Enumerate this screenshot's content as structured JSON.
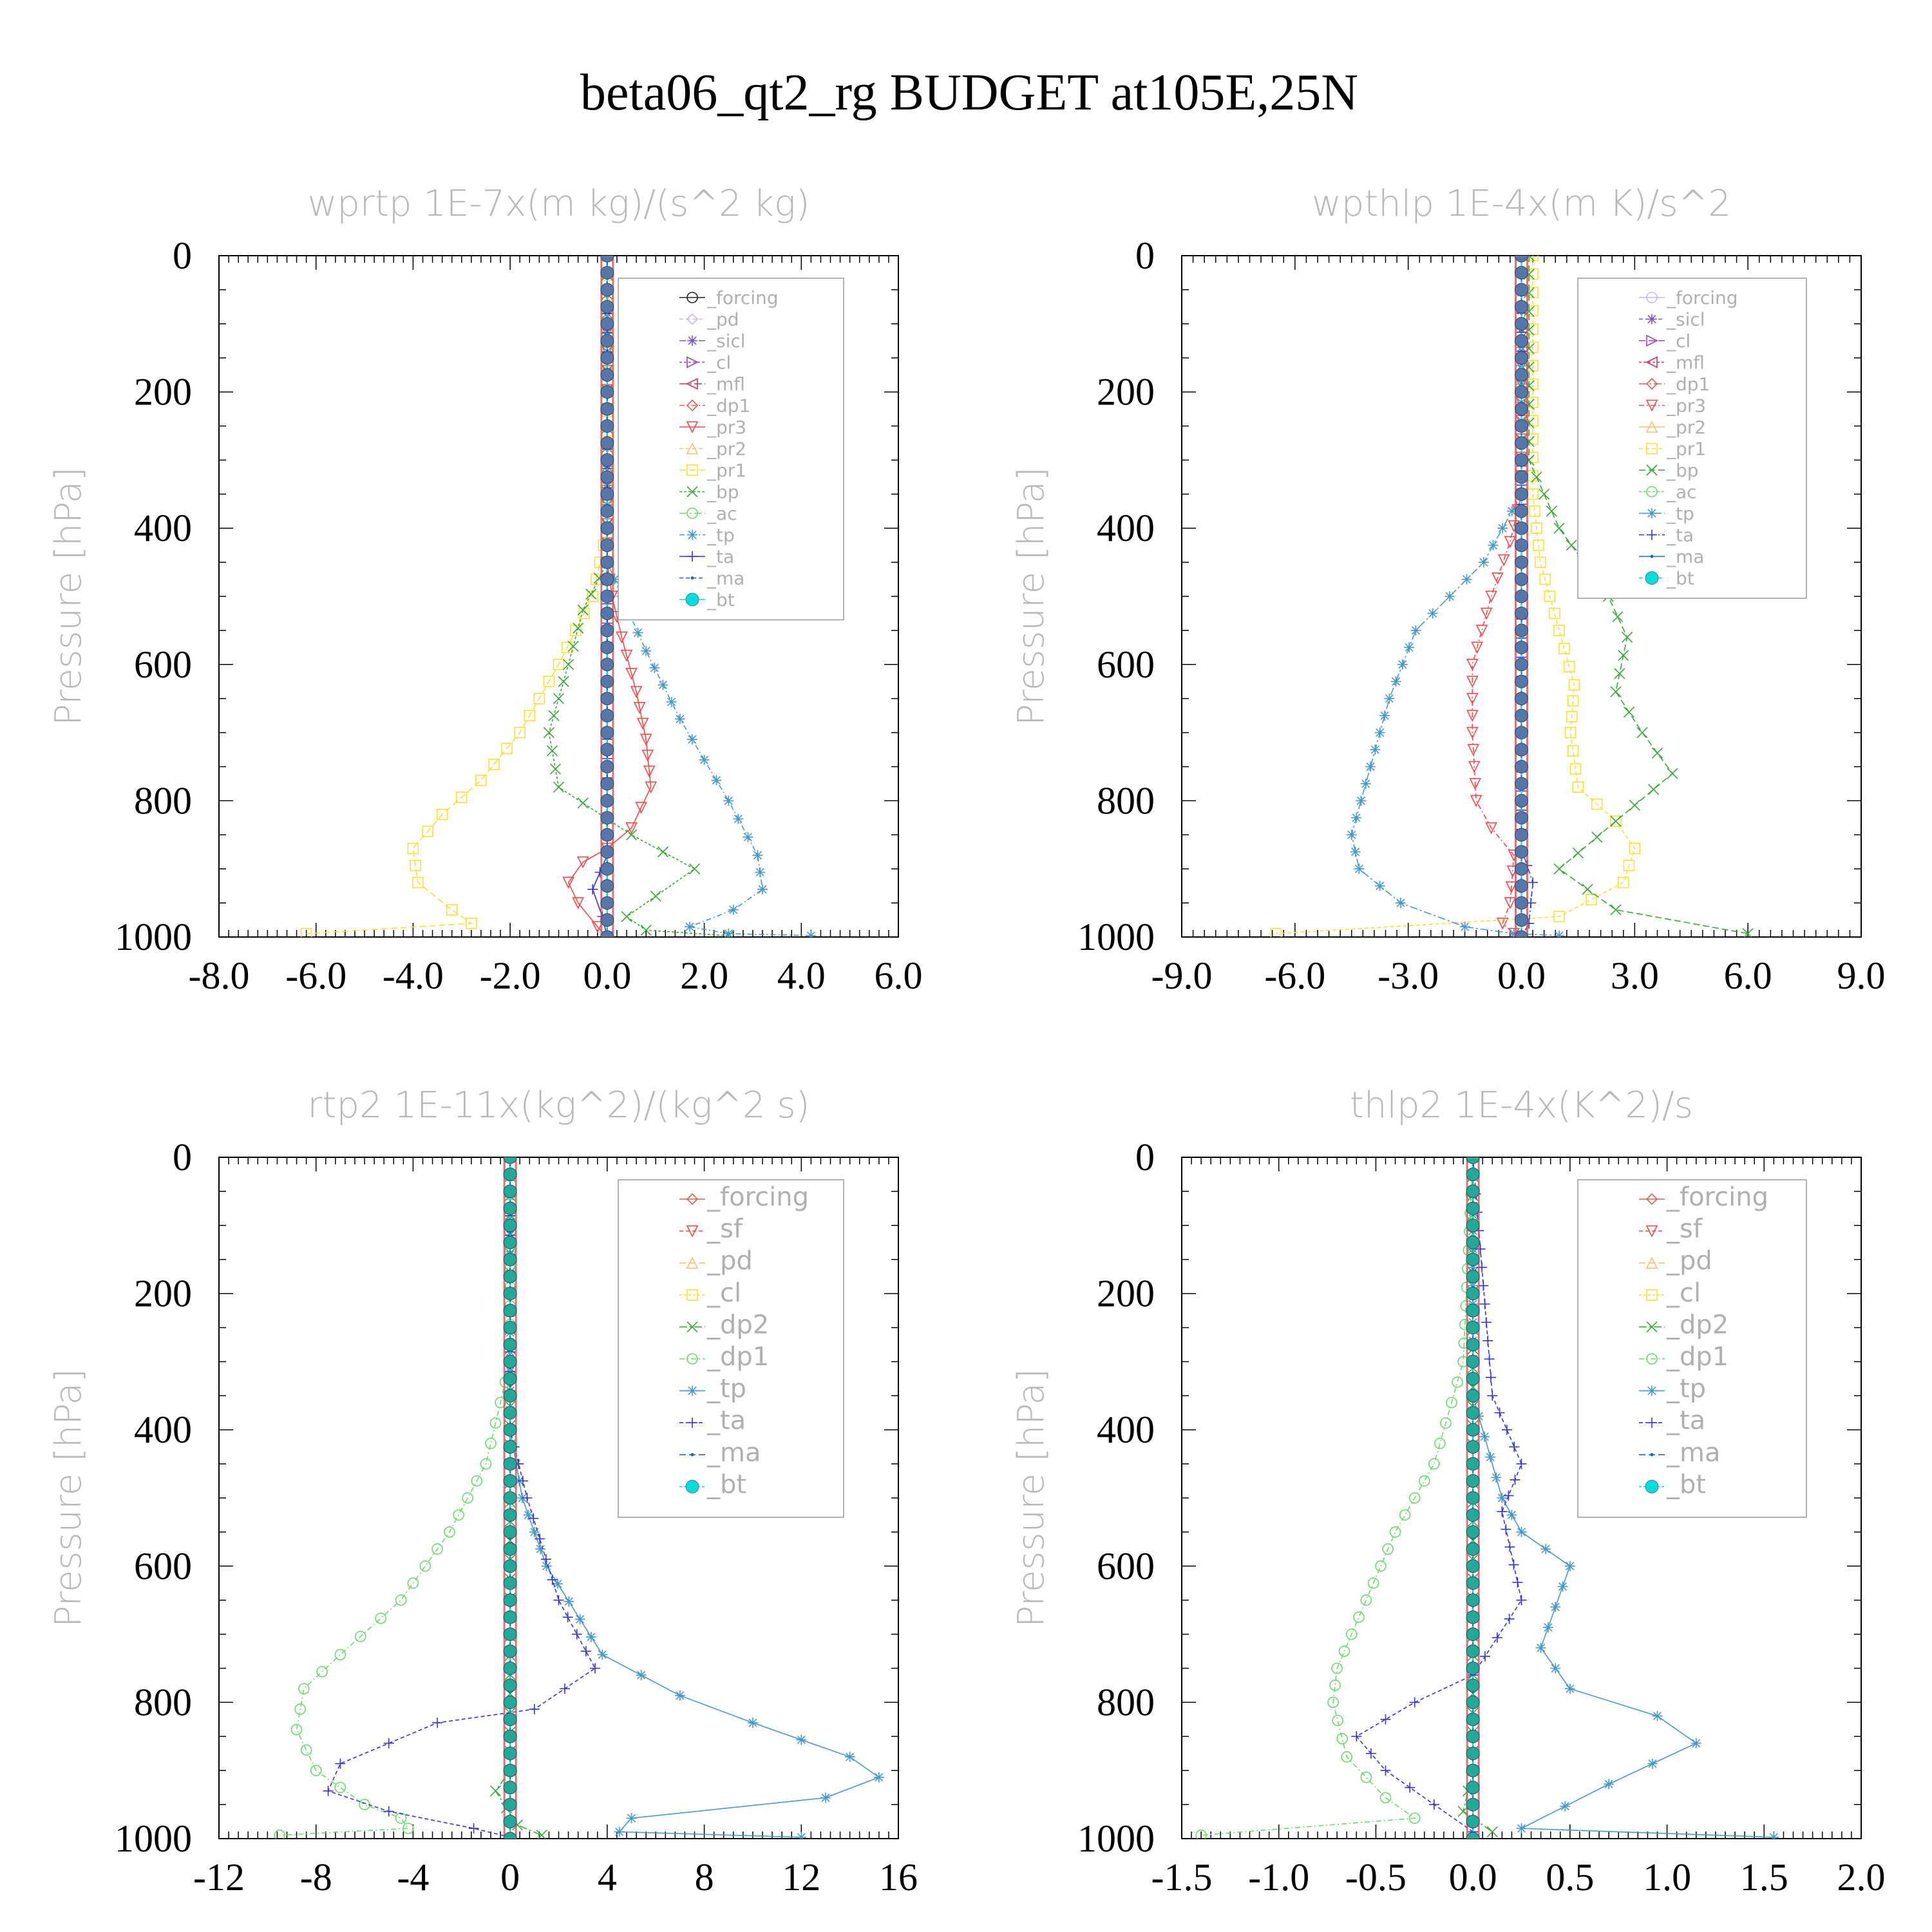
{
  "figure_title": "beta06_qt2_rg  BUDGET at105E,25N",
  "chart_data": [
    {
      "type": "line",
      "title": "wprtp  1E-7x(m kg)/(s^2 kg)",
      "xlabel": "",
      "ylabel": "Pressure [hPa]",
      "xlim": [
        -8,
        6
      ],
      "ylim": [
        1000,
        0
      ],
      "xticks": [
        "-8.0",
        "-6.0",
        "-4.0",
        "-2.0",
        "0.0",
        "2.0",
        "4.0",
        "6.0"
      ],
      "yticks": [
        "0",
        "200",
        "400",
        "600",
        "800",
        "1000"
      ],
      "legend_position": "top-right",
      "grid": false,
      "series": [
        {
          "name": "_forcing",
          "color": "#222222",
          "marker": "circle",
          "x": [
            0,
            0
          ],
          "y": [
            0,
            1000
          ]
        },
        {
          "name": "_pd",
          "color": "#c9b8f0",
          "marker": "diamond",
          "x": [
            0,
            0
          ],
          "y": [
            0,
            1000
          ]
        },
        {
          "name": "_sicl",
          "color": "#7a55d0",
          "marker": "star",
          "x": [
            0,
            0
          ],
          "y": [
            0,
            1000
          ]
        },
        {
          "name": "_cl",
          "color": "#9944aa",
          "marker": "triangle-right",
          "x": [
            0,
            0
          ],
          "y": [
            0,
            1000
          ]
        },
        {
          "name": "_mfl",
          "color": "#cc3355",
          "marker": "triangle-left",
          "x": [
            0,
            0
          ],
          "y": [
            0,
            1000
          ]
        },
        {
          "name": "_dp1",
          "color": "#e06050",
          "marker": "diamond",
          "x": [
            0,
            0
          ],
          "y": [
            0,
            1000
          ]
        },
        {
          "name": "_pr3",
          "color": "#ff4444",
          "marker": "triangle-down",
          "x": [
            0,
            0,
            0.1,
            0.3,
            0.6,
            0.8,
            0.9,
            0.5,
            0,
            -0.5,
            -0.8,
            -0.6,
            -0.2,
            0
          ],
          "y": [
            0,
            450,
            500,
            560,
            640,
            710,
            780,
            840,
            870,
            890,
            920,
            950,
            985,
            1000
          ]
        },
        {
          "name": "_pr2",
          "color": "#f5c070",
          "marker": "triangle-up",
          "x": [
            0,
            0
          ],
          "y": [
            0,
            1000
          ]
        },
        {
          "name": "_pr1",
          "color": "#ffdd33",
          "marker": "square",
          "x": [
            0,
            0,
            -0.3,
            -1,
            -1.8,
            -2.6,
            -3.4,
            -4.0,
            -3.9,
            -3.2,
            -2.8,
            -6.2
          ],
          "y": [
            0,
            400,
            500,
            600,
            700,
            770,
            820,
            870,
            920,
            960,
            980,
            995
          ]
        },
        {
          "name": "_bp",
          "color": "#33aa33",
          "marker": "x",
          "x": [
            0,
            0,
            -0.5,
            -0.8,
            -1.2,
            -1.0,
            0.5,
            1.8,
            1.0,
            0.4,
            0.8,
            2.5
          ],
          "y": [
            0,
            450,
            520,
            600,
            700,
            780,
            850,
            900,
            940,
            970,
            990,
            998
          ]
        },
        {
          "name": "_ac",
          "color": "#66dd66",
          "marker": "circle",
          "x": [
            0,
            0
          ],
          "y": [
            0,
            1000
          ]
        },
        {
          "name": "_tp",
          "color": "#4499cc",
          "marker": "asterisk",
          "x": [
            0,
            0,
            0.3,
            0.8,
            1.5,
            2.5,
            3.1,
            3.2,
            2.6,
            1.7,
            2.5,
            4.2
          ],
          "y": [
            0,
            450,
            500,
            580,
            680,
            800,
            880,
            930,
            960,
            985,
            995,
            998
          ]
        },
        {
          "name": "_ta",
          "color": "#3333dd",
          "marker": "plus",
          "x": [
            0,
            0,
            -0.3,
            -0.1,
            0
          ],
          "y": [
            0,
            880,
            930,
            970,
            1000
          ]
        },
        {
          "name": "_ma",
          "color": "#2266cc",
          "marker": "dot",
          "x": [
            0,
            0
          ],
          "y": [
            0,
            1000
          ]
        },
        {
          "name": "_bt",
          "color": "#00dddd",
          "marker": "filled-circle",
          "x": [
            0,
            0
          ],
          "y": [
            0,
            1000
          ]
        }
      ]
    },
    {
      "type": "line",
      "title": "wpthlp  1E-4x(m K)/s^2",
      "xlabel": "",
      "ylabel": "Pressure [hPa]",
      "xlim": [
        -9,
        9
      ],
      "ylim": [
        1000,
        0
      ],
      "xticks": [
        "-9.0",
        "-6.0",
        "-3.0",
        "0.0",
        "3.0",
        "6.0",
        "9.0"
      ],
      "yticks": [
        "0",
        "200",
        "400",
        "600",
        "800",
        "1000"
      ],
      "legend_position": "top-right",
      "grid": false,
      "series": [
        {
          "name": "_forcing",
          "color": "#c9b8f0",
          "marker": "circle",
          "x": [
            0,
            0
          ],
          "y": [
            0,
            1000
          ]
        },
        {
          "name": "_sicl",
          "color": "#7a55d0",
          "marker": "star",
          "x": [
            0,
            0
          ],
          "y": [
            0,
            1000
          ]
        },
        {
          "name": "_cl",
          "color": "#9944aa",
          "marker": "triangle-right",
          "x": [
            0,
            0
          ],
          "y": [
            0,
            1000
          ]
        },
        {
          "name": "_mfl",
          "color": "#cc3355",
          "marker": "triangle-left",
          "x": [
            0,
            0
          ],
          "y": [
            0,
            1000
          ]
        },
        {
          "name": "_dp1",
          "color": "#e06050",
          "marker": "diamond",
          "x": [
            0,
            0
          ],
          "y": [
            0,
            1000
          ]
        },
        {
          "name": "_pr3",
          "color": "#ff4444",
          "marker": "triangle-down",
          "x": [
            0,
            0,
            -0.3,
            -0.8,
            -1.3,
            -1.3,
            -1.2,
            -0.8,
            -0.2,
            -0.3,
            -0.5,
            -0.2
          ],
          "y": [
            0,
            350,
            420,
            500,
            600,
            700,
            800,
            840,
            880,
            950,
            980,
            995
          ]
        },
        {
          "name": "_pr2",
          "color": "#f5c070",
          "marker": "triangle-up",
          "x": [
            0,
            0
          ],
          "y": [
            0,
            1000
          ]
        },
        {
          "name": "_pr1",
          "color": "#ffdd33",
          "marker": "square",
          "x": [
            0.3,
            0.3,
            0.5,
            1.0,
            1.4,
            1.3,
            1.5,
            2.5,
            3.0,
            2.7,
            1.0,
            -6.5
          ],
          "y": [
            0,
            350,
            450,
            550,
            630,
            700,
            780,
            830,
            870,
            920,
            970,
            995
          ]
        },
        {
          "name": "_bp",
          "color": "#33aa33",
          "marker": "x",
          "x": [
            0.2,
            0.2,
            1.0,
            2.3,
            2.8,
            2.5,
            3.2,
            4.0,
            2.5,
            1.0,
            2.5,
            6.0
          ],
          "y": [
            0,
            300,
            400,
            500,
            560,
            640,
            700,
            760,
            830,
            900,
            960,
            995
          ]
        },
        {
          "name": "_ac",
          "color": "#66dd66",
          "marker": "circle",
          "x": [
            0,
            0
          ],
          "y": [
            0,
            1000
          ]
        },
        {
          "name": "_tp",
          "color": "#4499cc",
          "marker": "asterisk",
          "x": [
            0,
            0,
            -1.0,
            -2.8,
            -3.5,
            -4.0,
            -4.5,
            -4.3,
            -3.2,
            -1.5,
            -0.2,
            1.0
          ],
          "y": [
            0,
            350,
            450,
            550,
            650,
            750,
            850,
            900,
            950,
            985,
            995,
            998
          ]
        },
        {
          "name": "_ta",
          "color": "#3333dd",
          "marker": "plus",
          "x": [
            0,
            0,
            0.3,
            0.2,
            0
          ],
          "y": [
            0,
            870,
            920,
            980,
            1000
          ]
        },
        {
          "name": "_ma",
          "color": "#2266cc",
          "marker": "dot",
          "x": [
            0,
            0
          ],
          "y": [
            0,
            1000
          ]
        },
        {
          "name": "_bt",
          "color": "#00dddd",
          "marker": "filled-circle",
          "x": [
            0,
            0
          ],
          "y": [
            0,
            1000
          ]
        }
      ]
    },
    {
      "type": "line",
      "title": "rtp2  1E-11x(kg^2)/(kg^2 s)",
      "xlabel": "",
      "ylabel": "Pressure [hPa]",
      "xlim": [
        -12,
        16
      ],
      "ylim": [
        1000,
        0
      ],
      "xticks": [
        "-12",
        "-8",
        "-4",
        "0",
        "4",
        "8",
        "12",
        "16"
      ],
      "yticks": [
        "0",
        "200",
        "400",
        "600",
        "800",
        "1000"
      ],
      "legend_position": "top-right",
      "grid": false,
      "series": [
        {
          "name": "_forcing",
          "color": "#e06050",
          "marker": "diamond",
          "x": [
            0,
            0
          ],
          "y": [
            0,
            1000
          ]
        },
        {
          "name": "_sf",
          "color": "#ff4444",
          "marker": "triangle-down",
          "x": [
            0,
            0
          ],
          "y": [
            0,
            1000
          ]
        },
        {
          "name": "_pd",
          "color": "#f5c070",
          "marker": "triangle-up",
          "x": [
            0,
            0
          ],
          "y": [
            0,
            1000
          ]
        },
        {
          "name": "_cl",
          "color": "#ffdd33",
          "marker": "square",
          "x": [
            0,
            0
          ],
          "y": [
            0,
            1000
          ]
        },
        {
          "name": "_dp2",
          "color": "#33aa33",
          "marker": "x",
          "x": [
            0,
            0,
            -0.6,
            0.3,
            1.3
          ],
          "y": [
            0,
            900,
            930,
            980,
            995
          ]
        },
        {
          "name": "_dp1",
          "color": "#66dd66",
          "marker": "circle",
          "x": [
            0,
            0,
            -1.0,
            -2.5,
            -4.5,
            -7.0,
            -8.5,
            -8.8,
            -8.0,
            -6.0,
            -4.5,
            -4.2,
            -9.5
          ],
          "y": [
            0,
            300,
            450,
            550,
            650,
            730,
            780,
            840,
            900,
            950,
            970,
            985,
            995
          ]
        },
        {
          "name": "_tp",
          "color": "#4499cc",
          "marker": "asterisk",
          "x": [
            0,
            0,
            0.5,
            1.5,
            3.8,
            7,
            10,
            14,
            15.2,
            13,
            5,
            4.5,
            12
          ],
          "y": [
            0,
            400,
            500,
            600,
            730,
            790,
            830,
            880,
            910,
            940,
            970,
            990,
            998
          ]
        },
        {
          "name": "_ta",
          "color": "#3333dd",
          "marker": "plus",
          "x": [
            0,
            0,
            0.7,
            2,
            3.5,
            1,
            -3,
            -7,
            -7.5,
            -5,
            -1.5,
            0
          ],
          "y": [
            0,
            400,
            500,
            650,
            750,
            810,
            830,
            890,
            930,
            960,
            985,
            998
          ]
        },
        {
          "name": "_ma",
          "color": "#2266cc",
          "marker": "dot",
          "x": [
            0,
            0
          ],
          "y": [
            0,
            1000
          ]
        },
        {
          "name": "_bt",
          "color": "#00dddd",
          "marker": "filled-circle",
          "x": [
            0,
            0
          ],
          "y": [
            0,
            1000
          ]
        }
      ]
    },
    {
      "type": "line",
      "title": "thlp2  1E-4x(K^2)/s",
      "xlabel": "",
      "ylabel": "Pressure [hPa]",
      "xlim": [
        -1.5,
        2.0
      ],
      "ylim": [
        1000,
        0
      ],
      "xticks": [
        "-1.5",
        "-1.0",
        "-0.5",
        "0.0",
        "0.5",
        "1.0",
        "1.5",
        "2.0"
      ],
      "yticks": [
        "0",
        "200",
        "400",
        "600",
        "800",
        "1000"
      ],
      "legend_position": "top-right",
      "grid": false,
      "series": [
        {
          "name": "_forcing",
          "color": "#e06050",
          "marker": "diamond",
          "x": [
            0,
            0
          ],
          "y": [
            0,
            1000
          ]
        },
        {
          "name": "_sf",
          "color": "#ff4444",
          "marker": "triangle-down",
          "x": [
            0,
            0
          ],
          "y": [
            0,
            1000
          ]
        },
        {
          "name": "_pd",
          "color": "#f5c070",
          "marker": "triangle-up",
          "x": [
            0,
            0
          ],
          "y": [
            0,
            1000
          ]
        },
        {
          "name": "_cl",
          "color": "#ffdd33",
          "marker": "square",
          "x": [
            0,
            0
          ],
          "y": [
            0,
            1000
          ]
        },
        {
          "name": "_dp2",
          "color": "#33aa33",
          "marker": "x",
          "x": [
            0,
            0,
            -0.05,
            0.1
          ],
          "y": [
            0,
            900,
            960,
            990
          ]
        },
        {
          "name": "_dp1",
          "color": "#66dd66",
          "marker": "circle",
          "x": [
            0,
            -0.05,
            -0.2,
            -0.4,
            -0.55,
            -0.7,
            -0.72,
            -0.65,
            -0.45,
            -0.3,
            -1.4
          ],
          "y": [
            0,
            300,
            450,
            550,
            650,
            750,
            800,
            880,
            940,
            970,
            995
          ]
        },
        {
          "name": "_tp",
          "color": "#4499cc",
          "marker": "asterisk",
          "x": [
            0,
            0,
            0.15,
            0.25,
            0.5,
            0.35,
            0.5,
            0.95,
            1.15,
            0.7,
            0.25,
            1.55
          ],
          "y": [
            0,
            350,
            500,
            550,
            600,
            720,
            780,
            820,
            860,
            920,
            985,
            998
          ]
        },
        {
          "name": "_ta",
          "color": "#3333dd",
          "marker": "plus",
          "x": [
            0,
            0.1,
            0.25,
            0.15,
            0.25,
            0,
            -0.3,
            -0.6,
            -0.45,
            -0.2,
            0
          ],
          "y": [
            0,
            350,
            450,
            520,
            650,
            760,
            800,
            850,
            900,
            950,
            990
          ]
        },
        {
          "name": "_ma",
          "color": "#2266cc",
          "marker": "dot",
          "x": [
            0,
            0
          ],
          "y": [
            0,
            1000
          ]
        },
        {
          "name": "_bt",
          "color": "#00dddd",
          "marker": "filled-circle",
          "x": [
            0,
            0
          ],
          "y": [
            0,
            1000
          ]
        }
      ]
    }
  ]
}
